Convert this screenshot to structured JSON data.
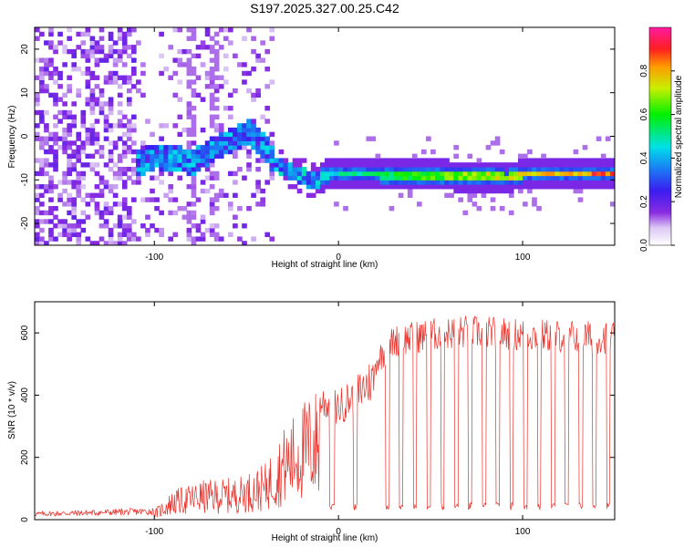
{
  "title": "S197.2025.327.00.25.C42",
  "chart_data": [
    {
      "type": "heatmap",
      "name": "spectrogram",
      "xlabel": "Height of straight line (km)",
      "ylabel": "Frequency (Hz)",
      "xlim": [
        -165,
        150
      ],
      "ylim": [
        -25,
        25
      ],
      "xticks": [
        -100,
        0,
        100
      ],
      "xtick_labels": [
        "-100",
        "0",
        "100"
      ],
      "yticks": [
        -20,
        -10,
        0,
        10,
        20
      ],
      "ytick_labels": [
        "-20",
        "-10",
        "0",
        "10",
        "20"
      ],
      "colorbar": {
        "label": "Normalized spectral amplitude",
        "range": [
          0,
          1
        ],
        "ticks": [
          0.0,
          0.2,
          0.4,
          0.6,
          0.8
        ],
        "tick_labels": [
          "0.0",
          "0.2",
          "0.4",
          "0.6",
          "0.8"
        ]
      },
      "ridge": [
        {
          "x": -110,
          "f": -6
        },
        {
          "x": -100,
          "f": -4.5
        },
        {
          "x": -90,
          "f": -5
        },
        {
          "x": -80,
          "f": -6
        },
        {
          "x": -70,
          "f": -3
        },
        {
          "x": -60,
          "f": -1
        },
        {
          "x": -50,
          "f": 1
        },
        {
          "x": -40,
          "f": -3
        },
        {
          "x": -35,
          "f": -6.5
        },
        {
          "x": -25,
          "f": -8.5
        },
        {
          "x": -15,
          "f": -10
        },
        {
          "x": -5,
          "f": -8.5
        },
        {
          "x": 20,
          "f": -8.5
        },
        {
          "x": 60,
          "f": -9
        },
        {
          "x": 90,
          "f": -9.5
        },
        {
          "x": 100,
          "f": -8.5
        },
        {
          "x": 150,
          "f": -8.5
        }
      ]
    },
    {
      "type": "line",
      "name": "snr",
      "xlabel": "Height of straight line (km)",
      "ylabel": "SNR (10 * v/v)",
      "xlim": [
        -165,
        150
      ],
      "ylim": [
        0,
        700
      ],
      "xticks": [
        -100,
        0,
        100
      ],
      "xtick_labels": [
        "-100",
        "0",
        "100"
      ],
      "yticks": [
        0,
        200,
        400,
        600
      ],
      "ytick_labels": [
        "0",
        "200",
        "400",
        "600"
      ],
      "color": "#e8312a",
      "envelope": [
        {
          "x": -165,
          "y": 20
        },
        {
          "x": -100,
          "y": 30
        },
        {
          "x": -90,
          "y": 90
        },
        {
          "x": -75,
          "y": 120
        },
        {
          "x": -55,
          "y": 130
        },
        {
          "x": -40,
          "y": 170
        },
        {
          "x": -30,
          "y": 280
        },
        {
          "x": -20,
          "y": 360
        },
        {
          "x": -10,
          "y": 420
        },
        {
          "x": 0,
          "y": 400
        },
        {
          "x": 10,
          "y": 450
        },
        {
          "x": 20,
          "y": 510
        },
        {
          "x": 30,
          "y": 580
        },
        {
          "x": 50,
          "y": 600
        },
        {
          "x": 70,
          "y": 610
        },
        {
          "x": 100,
          "y": 600
        },
        {
          "x": 150,
          "y": 590
        }
      ]
    }
  ]
}
